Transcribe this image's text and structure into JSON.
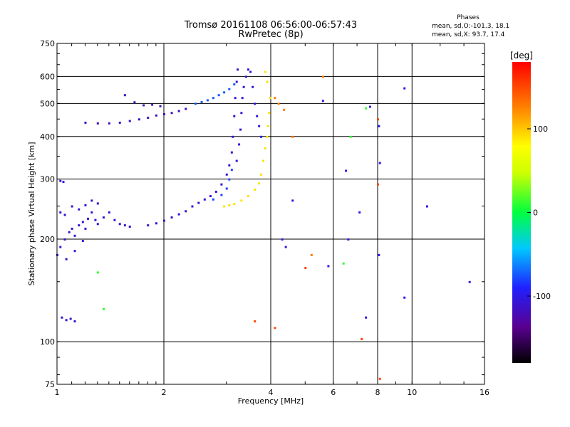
{
  "header": {
    "title_line1": "Tromsø 20161108 06:56:00-06:57:43",
    "title_line2": "RwPretec (8p)",
    "phases_title": "Phases",
    "phases_o": "mean, sd,O:-101.3, 18.1",
    "phases_x": "mean, sd,X:  93.7, 17.4"
  },
  "colorbar": {
    "unit_label": "[deg]",
    "ticks": [
      100,
      0,
      -100
    ],
    "range": [
      -180,
      180
    ]
  },
  "chart_data": {
    "type": "scatter",
    "title": "Tromsø 20161108 06:56:00-06:57:43",
    "subtitle": "RwPretec (8p)",
    "xlabel": "Frequency [MHz]",
    "ylabel": "Stationary phase Virtual Height [km]",
    "x_scale": "log",
    "y_scale": "log",
    "xlim": [
      1,
      16
    ],
    "ylim": [
      75,
      750
    ],
    "x_ticks": [
      1,
      2,
      4,
      6,
      8,
      10,
      16
    ],
    "y_ticks": [
      75,
      100,
      200,
      300,
      400,
      500,
      600,
      750
    ],
    "x_gridlines": [
      2,
      4,
      6,
      8,
      10
    ],
    "y_gridlines": [
      100,
      200,
      300,
      400,
      500,
      600
    ],
    "grid": true,
    "color_by": "phase [deg]",
    "series": [
      {
        "points": [
          [
            1.0,
            180
          ],
          [
            1.02,
            190
          ],
          [
            1.05,
            200
          ],
          [
            1.08,
            210
          ],
          [
            1.1,
            215
          ],
          [
            1.12,
            205
          ],
          [
            1.15,
            220
          ],
          [
            1.18,
            225
          ],
          [
            1.2,
            215
          ],
          [
            1.22,
            230
          ],
          [
            1.25,
            240
          ],
          [
            1.28,
            228
          ],
          [
            1.3,
            222
          ],
          [
            1.35,
            232
          ],
          [
            1.4,
            240
          ],
          [
            1.45,
            228
          ],
          [
            1.5,
            222
          ],
          [
            1.55,
            220
          ],
          [
            1.6,
            218
          ],
          [
            1.02,
            240
          ],
          [
            1.05,
            236
          ],
          [
            1.1,
            250
          ],
          [
            1.15,
            245
          ],
          [
            1.2,
            252
          ],
          [
            1.25,
            260
          ],
          [
            1.3,
            255
          ],
          [
            1.06,
            175
          ],
          [
            1.12,
            185
          ],
          [
            1.18,
            198
          ],
          [
            1.03,
            118
          ],
          [
            1.06,
            116
          ],
          [
            1.09,
            117
          ],
          [
            1.12,
            115
          ],
          [
            1.02,
            297
          ],
          [
            1.04,
            295
          ]
        ],
        "phase": -110
      },
      {
        "points": [
          [
            1.2,
            440
          ],
          [
            1.3,
            438
          ],
          [
            1.4,
            438
          ],
          [
            1.5,
            440
          ],
          [
            1.6,
            445
          ],
          [
            1.7,
            450
          ],
          [
            1.8,
            455
          ],
          [
            1.9,
            462
          ],
          [
            2.0,
            466
          ],
          [
            2.1,
            470
          ],
          [
            2.2,
            476
          ],
          [
            2.3,
            483
          ],
          [
            1.55,
            530
          ],
          [
            1.65,
            505
          ],
          [
            1.75,
            495
          ],
          [
            1.85,
            497
          ],
          [
            1.95,
            492
          ]
        ],
        "phase": -115
      },
      {
        "points": [
          [
            2.45,
            500
          ],
          [
            2.55,
            506
          ],
          [
            2.65,
            512
          ],
          [
            2.75,
            520
          ],
          [
            2.85,
            530
          ],
          [
            2.95,
            540
          ],
          [
            3.05,
            552
          ],
          [
            3.15,
            570
          ]
        ],
        "phase": -75
      },
      {
        "points": [
          [
            1.8,
            220
          ],
          [
            1.9,
            223
          ],
          [
            2.0,
            227
          ],
          [
            2.1,
            232
          ],
          [
            2.2,
            237
          ],
          [
            2.3,
            242
          ],
          [
            2.4,
            250
          ],
          [
            2.5,
            256
          ],
          [
            2.6,
            262
          ],
          [
            2.7,
            268
          ],
          [
            2.8,
            276
          ],
          [
            2.9,
            290
          ],
          [
            3.0,
            310
          ],
          [
            3.05,
            330
          ],
          [
            3.1,
            360
          ],
          [
            3.12,
            400
          ],
          [
            3.15,
            460
          ],
          [
            3.17,
            520
          ],
          [
            3.2,
            580
          ],
          [
            3.22,
            630
          ]
        ],
        "phase": -110
      },
      {
        "points": [
          [
            2.75,
            262
          ],
          [
            2.9,
            270
          ],
          [
            3.0,
            282
          ],
          [
            3.05,
            300
          ],
          [
            3.1,
            320
          ]
        ],
        "phase": -80
      },
      {
        "points": [
          [
            3.2,
            340
          ],
          [
            3.25,
            380
          ],
          [
            3.28,
            420
          ],
          [
            3.3,
            470
          ],
          [
            3.32,
            520
          ],
          [
            3.35,
            560
          ],
          [
            3.4,
            600
          ],
          [
            3.45,
            630
          ],
          [
            3.5,
            620
          ],
          [
            3.55,
            560
          ],
          [
            3.6,
            500
          ],
          [
            3.65,
            460
          ],
          [
            3.7,
            430
          ],
          [
            3.75,
            400
          ]
        ],
        "phase": -105
      },
      {
        "points": [
          [
            2.95,
            250
          ],
          [
            3.05,
            252
          ],
          [
            3.15,
            254
          ],
          [
            3.3,
            260
          ],
          [
            3.45,
            268
          ],
          [
            3.6,
            280
          ],
          [
            3.7,
            292
          ],
          [
            3.75,
            310
          ],
          [
            3.8,
            340
          ],
          [
            3.85,
            370
          ],
          [
            3.9,
            400
          ],
          [
            3.92,
            430
          ],
          [
            3.95,
            470
          ],
          [
            3.98,
            520
          ],
          [
            3.9,
            580
          ],
          [
            3.85,
            620
          ]
        ],
        "phase": 90
      },
      {
        "points": [
          [
            4.1,
            520
          ],
          [
            4.2,
            500
          ],
          [
            4.35,
            480
          ],
          [
            4.6,
            400
          ],
          [
            5.2,
            180
          ],
          [
            5.6,
            600
          ]
        ],
        "phase": 130
      },
      {
        "points": [
          [
            4.6,
            260
          ],
          [
            4.3,
            200
          ],
          [
            5.6,
            510
          ],
          [
            6.5,
            318
          ],
          [
            6.6,
            200
          ],
          [
            7.1,
            240
          ],
          [
            7.4,
            118
          ],
          [
            7.6,
            490
          ],
          [
            8.05,
            430
          ],
          [
            8.1,
            335
          ],
          [
            8.05,
            180
          ],
          [
            9.5,
            555
          ],
          [
            9.5,
            135
          ],
          [
            11.0,
            250
          ],
          [
            14.5,
            150
          ],
          [
            5.8,
            167
          ],
          [
            4.4,
            190
          ]
        ],
        "phase": -100
      },
      {
        "points": [
          [
            1.35,
            125
          ],
          [
            1.3,
            160
          ],
          [
            6.4,
            170
          ],
          [
            7.4,
            485
          ],
          [
            6.7,
            400
          ]
        ],
        "phase": 10
      },
      {
        "points": [
          [
            8.0,
            290
          ],
          [
            8.0,
            450
          ],
          [
            7.2,
            102
          ],
          [
            8.1,
            78
          ],
          [
            5.0,
            165
          ],
          [
            4.1,
            110
          ],
          [
            3.6,
            115
          ]
        ],
        "phase": 150
      }
    ]
  }
}
